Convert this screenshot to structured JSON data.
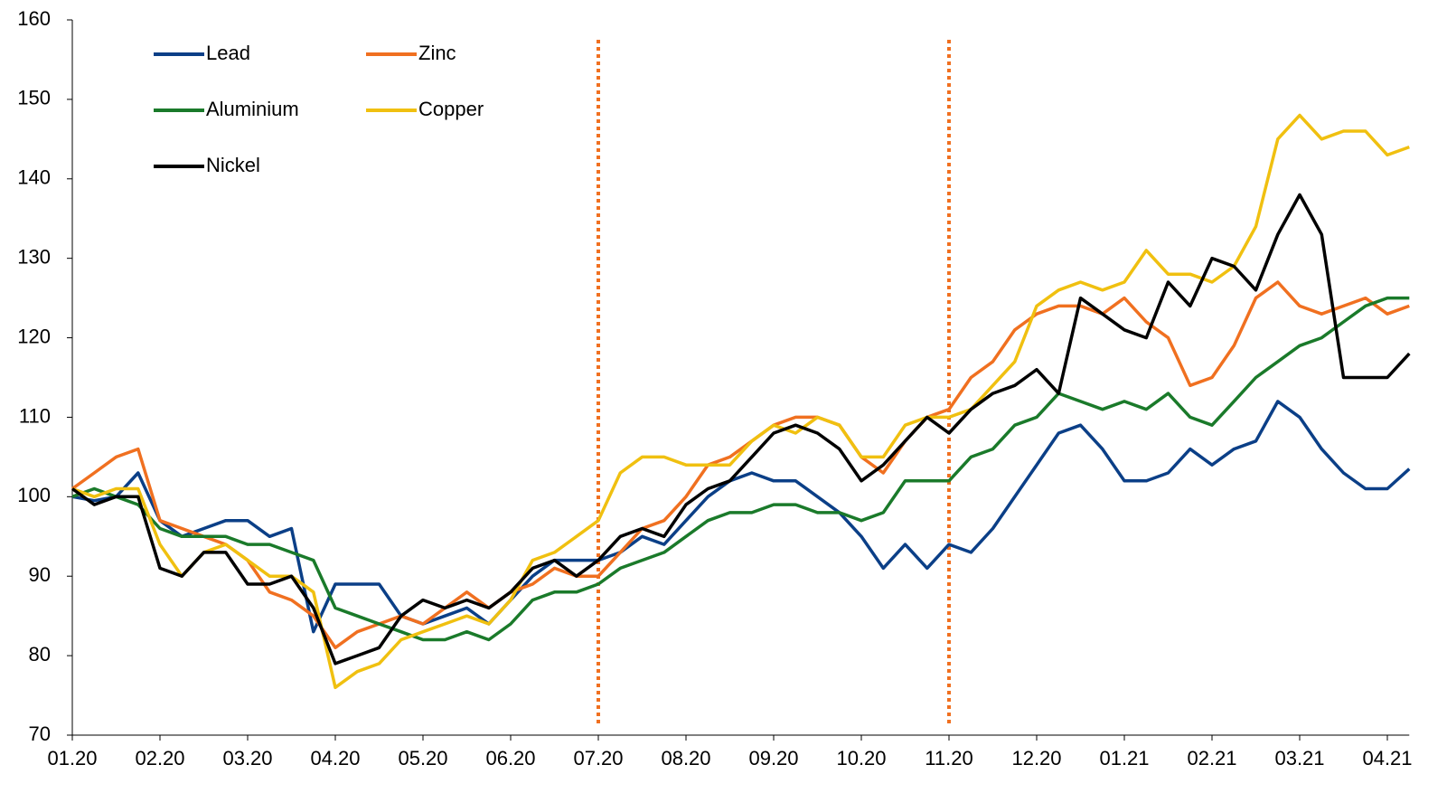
{
  "chart_data": {
    "type": "line",
    "categories": [
      "01.20",
      null,
      null,
      null,
      "02.20",
      null,
      null,
      null,
      "03.20",
      null,
      null,
      null,
      "04.20",
      null,
      null,
      null,
      "05.20",
      null,
      null,
      null,
      "06.20",
      null,
      null,
      null,
      "07.20",
      null,
      null,
      null,
      "08.20",
      null,
      null,
      null,
      "09.20",
      null,
      null,
      null,
      "10.20",
      null,
      null,
      null,
      "11.20",
      null,
      null,
      null,
      "12.20",
      null,
      null,
      null,
      "01.21",
      null,
      null,
      null,
      "02.21",
      null,
      null,
      null,
      "03.21",
      null,
      null,
      null,
      "04.21",
      null
    ],
    "series": [
      {
        "name": "Lead",
        "color": "#0b3f87",
        "values": [
          100,
          99.5,
          100,
          103,
          97,
          95,
          96,
          97,
          97,
          95,
          96,
          83,
          89,
          89,
          89,
          85,
          84,
          85,
          86,
          84,
          87,
          90,
          92,
          92,
          92,
          93,
          95,
          94,
          97,
          100,
          102,
          103,
          102,
          102,
          100,
          98,
          95,
          91,
          94,
          91,
          94,
          93,
          96,
          100,
          104,
          108,
          109,
          106,
          102,
          102,
          103,
          106,
          104,
          106,
          107,
          112,
          110,
          106,
          103,
          101,
          101,
          103.5
        ]
      },
      {
        "name": "Zinc",
        "color": "#f07020",
        "values": [
          101,
          103,
          105,
          106,
          97,
          96,
          95,
          94,
          92,
          88,
          87,
          85,
          81,
          83,
          84,
          85,
          84,
          86,
          88,
          86,
          88,
          89,
          91,
          90,
          90,
          93,
          96,
          97,
          100,
          104,
          105,
          107,
          109,
          110,
          110,
          109,
          105,
          103,
          107,
          110,
          111,
          115,
          117,
          121,
          123,
          124,
          124,
          123,
          125,
          122,
          120,
          114,
          115,
          119,
          125,
          127,
          124,
          123,
          124,
          125,
          123,
          124
        ]
      },
      {
        "name": "Aluminium",
        "color": "#1a7a2a",
        "values": [
          100,
          101,
          100,
          99,
          96,
          95,
          95,
          95,
          94,
          94,
          93,
          92,
          86,
          85,
          84,
          83,
          82,
          82,
          83,
          82,
          84,
          87,
          88,
          88,
          89,
          91,
          92,
          93,
          95,
          97,
          98,
          98,
          99,
          99,
          98,
          98,
          97,
          98,
          102,
          102,
          102,
          105,
          106,
          109,
          110,
          113,
          112,
          111,
          112,
          111,
          113,
          110,
          109,
          112,
          115,
          117,
          119,
          120,
          122,
          124,
          125,
          125
        ]
      },
      {
        "name": "Copper",
        "color": "#f0c010",
        "values": [
          101,
          100,
          101,
          101,
          94,
          90,
          93,
          94,
          92,
          90,
          90,
          88,
          76,
          78,
          79,
          82,
          83,
          84,
          85,
          84,
          87,
          92,
          93,
          95,
          97,
          103,
          105,
          105,
          104,
          104,
          104,
          107,
          109,
          108,
          110,
          109,
          105,
          105,
          109,
          110,
          110,
          111,
          114,
          117,
          124,
          126,
          127,
          126,
          127,
          131,
          128,
          128,
          127,
          129,
          134,
          145,
          148,
          145,
          146,
          146,
          143,
          144
        ]
      },
      {
        "name": "Nickel",
        "color": "#000000",
        "values": [
          101,
          99,
          100,
          100,
          91,
          90,
          93,
          93,
          89,
          89,
          90,
          86,
          79,
          80,
          81,
          85,
          87,
          86,
          87,
          86,
          88,
          91,
          92,
          90,
          92,
          95,
          96,
          95,
          99,
          101,
          102,
          105,
          108,
          109,
          108,
          106,
          102,
          104,
          107,
          110,
          108,
          111,
          113,
          114,
          116,
          113,
          125,
          123,
          121,
          120,
          127,
          124,
          130,
          129,
          126,
          133,
          138,
          133,
          115,
          115,
          115,
          118
        ]
      }
    ],
    "ylim": [
      70,
      160
    ],
    "yticks": [
      70,
      80,
      90,
      100,
      110,
      120,
      130,
      140,
      150,
      160
    ],
    "vlines": [
      "07.20",
      "11.20"
    ],
    "vline_color": "#f07020"
  }
}
